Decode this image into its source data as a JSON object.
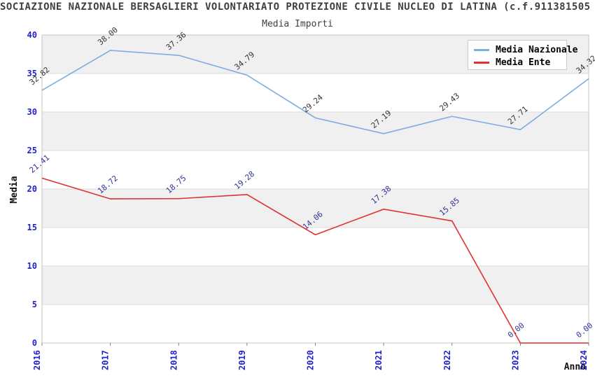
{
  "header": {
    "title": "SOCIAZIONE NAZIONALE BERSAGLIERI VOLONTARIATO PROTEZIONE CIVILE NUCLEO DI LATINA (c.f.911381505"
  },
  "chart_data": {
    "type": "line",
    "title": "Media Importi",
    "xlabel": "Anno",
    "ylabel": "Media",
    "x": [
      "2016",
      "2017",
      "2018",
      "2019",
      "2020",
      "2021",
      "2022",
      "2023",
      "2024"
    ],
    "series": [
      {
        "name": "Media Nazionale",
        "color": "#7fabe3",
        "label_color": "#333333",
        "values": [
          32.82,
          38.0,
          37.36,
          34.79,
          29.24,
          27.19,
          29.43,
          27.71,
          34.32
        ]
      },
      {
        "name": "Media Ente",
        "color": "#e03030",
        "label_color": "#333399",
        "values": [
          21.41,
          18.72,
          18.75,
          19.28,
          14.06,
          17.38,
          15.85,
          0.0,
          0.0
        ]
      }
    ],
    "ylim": [
      0,
      40
    ],
    "yticks": [
      0,
      5,
      10,
      15,
      20,
      25,
      30,
      35,
      40
    ],
    "legend_position": "top-right",
    "grid": "horizontal gridlines with alternating shaded bands"
  },
  "colors": {
    "band_fill": "#f0f0f0",
    "grid_line": "#dcdcdc",
    "plot_frame": "#c6c6c6",
    "tick_label": "#2222cc",
    "x_tick_mark": "#808080",
    "title_text": "#3f3f3f",
    "axis_title_text": "#111111",
    "legend_border": "#cccccc",
    "legend_bg": "#ffffff"
  }
}
